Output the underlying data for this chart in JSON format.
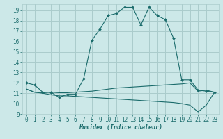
{
  "xlabel": "Humidex (Indice chaleur)",
  "bg_color": "#cce8e8",
  "grid_color": "#aacccc",
  "line_color": "#1a6b6b",
  "xlim": [
    -0.5,
    23.5
  ],
  "ylim": [
    9.0,
    19.6
  ],
  "yticks": [
    9,
    10,
    11,
    12,
    13,
    14,
    15,
    16,
    17,
    18,
    19
  ],
  "xticks": [
    0,
    1,
    2,
    3,
    4,
    5,
    6,
    7,
    8,
    9,
    10,
    11,
    12,
    13,
    14,
    15,
    16,
    17,
    18,
    19,
    20,
    21,
    22,
    23
  ],
  "line1_x": [
    0,
    1,
    2,
    3,
    4,
    5,
    6,
    7,
    8,
    9,
    10,
    11,
    12,
    13,
    14,
    15,
    16,
    17,
    18,
    19,
    20,
    21,
    22,
    23
  ],
  "line1_y": [
    12.0,
    11.8,
    11.1,
    11.1,
    10.6,
    10.9,
    10.9,
    12.4,
    16.1,
    17.2,
    18.5,
    18.7,
    19.3,
    19.3,
    17.6,
    19.3,
    18.5,
    18.1,
    16.3,
    12.3,
    12.3,
    11.3,
    11.2,
    11.1
  ],
  "line2_x": [
    0,
    1,
    2,
    3,
    4,
    5,
    6,
    7,
    8,
    9,
    10,
    11,
    12,
    13,
    14,
    15,
    16,
    17,
    18,
    19,
    20,
    21,
    22,
    23
  ],
  "line2_y": [
    11.4,
    11.1,
    11.05,
    11.1,
    11.05,
    11.05,
    11.1,
    11.15,
    11.2,
    11.3,
    11.4,
    11.5,
    11.55,
    11.6,
    11.65,
    11.7,
    11.75,
    11.8,
    11.85,
    11.9,
    12.0,
    11.2,
    11.3,
    11.1
  ],
  "line3_x": [
    0,
    1,
    2,
    3,
    4,
    5,
    6,
    7,
    8,
    9,
    10,
    11,
    12,
    13,
    14,
    15,
    16,
    17,
    18,
    19,
    20,
    21,
    22,
    23
  ],
  "line3_y": [
    11.4,
    11.1,
    11.0,
    10.85,
    10.75,
    10.75,
    10.7,
    10.65,
    10.6,
    10.55,
    10.5,
    10.45,
    10.4,
    10.35,
    10.3,
    10.25,
    10.2,
    10.15,
    10.1,
    10.0,
    9.85,
    9.2,
    9.85,
    11.1
  ]
}
